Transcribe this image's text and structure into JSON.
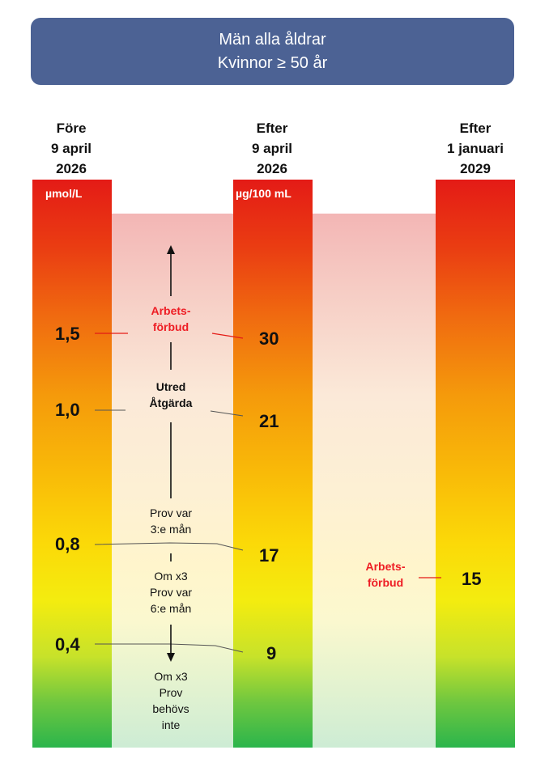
{
  "header": {
    "line1": "Män alla åldrar",
    "line2": "Kvinnor ≥ 50 år"
  },
  "columns": [
    {
      "line1": "Före",
      "line2": "9 april",
      "line3": "2026",
      "unit": "µmol/L"
    },
    {
      "line1": "Efter",
      "line2": "9 april",
      "line3": "2026",
      "unit": "µg/100 mL"
    },
    {
      "line1": "Efter",
      "line2": "1 januari",
      "line3": "2029"
    }
  ],
  "left_values": [
    "1,5",
    "1,0",
    "0,8",
    "0,4"
  ],
  "mid_values": [
    "30",
    "21",
    "17",
    "9"
  ],
  "right_value": "15",
  "labels": {
    "ban_1": "Arbets-",
    "ban_2": "förbud",
    "utred": "Utred",
    "atgarda": "Åtgärda",
    "prov3_1": "Prov var",
    "prov3_2": "3:e mån",
    "prov6_1": "Om x3",
    "prov6_2": "Prov var",
    "prov6_3": "6:e mån",
    "none_1": "Om x3",
    "none_2": "Prov",
    "none_3": "behövs",
    "none_4": "inte",
    "right_ban_1": "Arbets-",
    "right_ban_2": "förbud"
  },
  "colors": {
    "header": "#4c6294",
    "ban_text": "#ee1d24"
  }
}
